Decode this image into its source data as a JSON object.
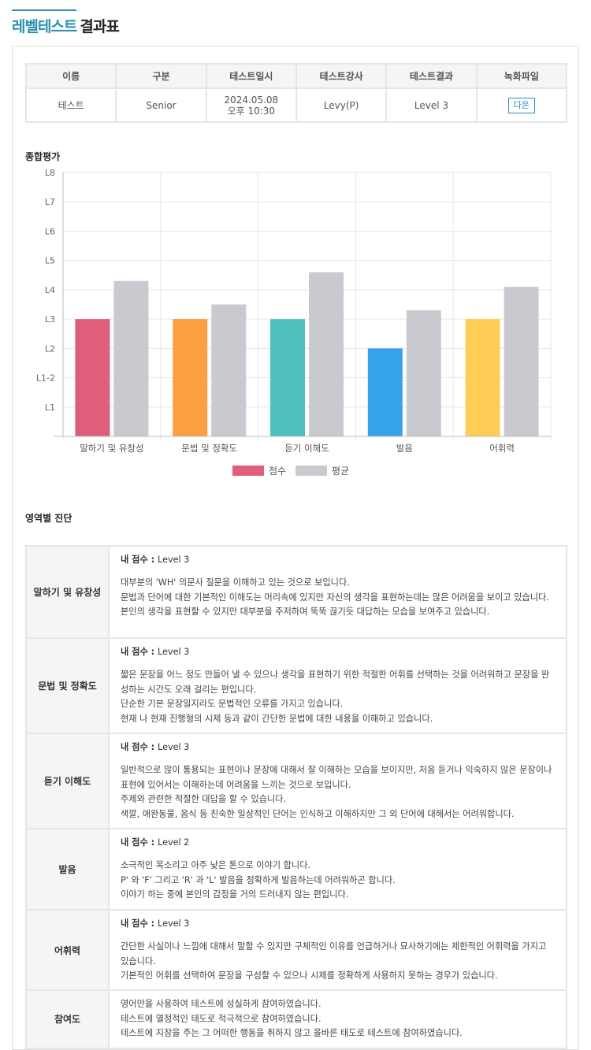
{
  "page_title": {
    "accent": "레벨테스트",
    "rest": "결과표"
  },
  "info_table": {
    "headers": [
      "이름",
      "구분",
      "테스트일시",
      "테스트강사",
      "테스트결과",
      "녹화파일"
    ],
    "row": {
      "name": "테스트",
      "category": "Senior",
      "date_line1": "2024.05.08",
      "date_line2": "오후 10:30",
      "teacher": "Levy(P)",
      "result": "Level 3",
      "download_label": "다운"
    }
  },
  "overall_label": "종합평가",
  "chart_data": {
    "type": "bar",
    "categories": [
      "말하기 및 유창성",
      "문법 및 정확도",
      "듣기 이해도",
      "발음",
      "어휘력"
    ],
    "y_tick_labels": [
      "L1",
      "L1-2",
      "L2",
      "L3",
      "L4",
      "L5",
      "L6",
      "L7",
      "L8"
    ],
    "ylim": [
      0,
      9
    ],
    "series": [
      {
        "name": "점수",
        "values": [
          4,
          4,
          4,
          3,
          4
        ],
        "colors": [
          "#e05d7b",
          "#fd9e40",
          "#4dbfbf",
          "#36a2eb",
          "#ffcd56"
        ]
      },
      {
        "name": "평균",
        "values": [
          5.3,
          4.5,
          5.6,
          4.3,
          5.1
        ],
        "color": "#c9cacf"
      }
    ],
    "legend_position": "bottom",
    "grid": true
  },
  "diagnosis_label": "영역별 진단",
  "diagnosis": [
    {
      "area": "말하기 및 유창성",
      "score_label": "내 점수 : ",
      "score": "Level 3",
      "lines": [
        "대부분의 'WH' 의문사 질문을 이해하고 있는 것으로 보입니다.",
        "문법과 단어에 대한 기본적인 이해도는 머리속에 있지만 자신의 생각을 표현하는데는 많은 어려움을 보이고 있습니다.",
        "본인의 생각을 표현할 수 있지만 대부분을 주저하며 뚝뚝 끊기듯 대답하는 모습을 보여주고 있습니다."
      ]
    },
    {
      "area": "문법 및 정확도",
      "score_label": "내 점수 : ",
      "score": "Level 3",
      "lines": [
        "짧은 문장을 어느 정도 만들어 낼 수 있으나 생각을 표현하기 위한 적절한 어휘를 선택하는 것을 어려워하고 문장을 완성하는 시간도 오래 걸리는 편입니다.",
        "단순한 기본 문장일지라도 문법적인 오류를 가지고 있습니다.",
        "현재 나 현재 진행형의 시제 등과 같이 간단한 문법에 대한 내용을 이해하고 있습니다."
      ]
    },
    {
      "area": "듣기 이해도",
      "score_label": "내 점수 : ",
      "score": "Level 3",
      "lines": [
        "일반적으로 많이 통용되는 표현이나 문장에 대해서 잘 이해하는 모습을 보이지만, 처음 듣거나 익숙하지 않은 문장이나 표현에 있어서는 이해하는데 어려움을 느끼는 것으로 보입니다.",
        "주제와 관련한 적절한 대답을 할 수 있습니다.",
        "색깔, 애완동물, 음식 등 친숙한 일상적인 단어는 인식하고 이해하지만 그 외 단어에 대해서는 어려워합니다."
      ]
    },
    {
      "area": "발음",
      "score_label": "내 점수 : ",
      "score": "Level 2",
      "lines": [
        "소극적인 목소리고 아주 낮은 톤으로 이야기 합니다.",
        "P' 와 'F' 그리고 'R' 과 'L' 발음을 정확하게 발음하는데 어려워하곤 합니다.",
        "이야기 하는 중에 본인의 감정을 거의 드러내지 않는 편입니다."
      ]
    },
    {
      "area": "어휘력",
      "score_label": "내 점수 : ",
      "score": "Level 3",
      "lines": [
        "간단한 사실이나 느낌에 대해서 말할 수 있지만 구체적인 이유를 언급하거나 묘사하기에는 제한적인 어휘력을 가지고 있습니다.",
        "기본적인 어휘를 선택하여 문장을 구성할 수 있으나 시제를 정확하게 사용하지 못하는 경우가 있습니다."
      ]
    },
    {
      "area": "참여도",
      "score_label": "",
      "score": "",
      "lines": [
        "영어만을 사용하여 테스트에 성실하게 참여하였습니다.",
        "테스트에 열정적인 태도로 적극적으로 참여하였습니다.",
        "테스트에 지장을 주는 그 어떠한 행동을 취하지 않고 올바른 태도로 테스트에 참여하였습니다."
      ]
    }
  ]
}
